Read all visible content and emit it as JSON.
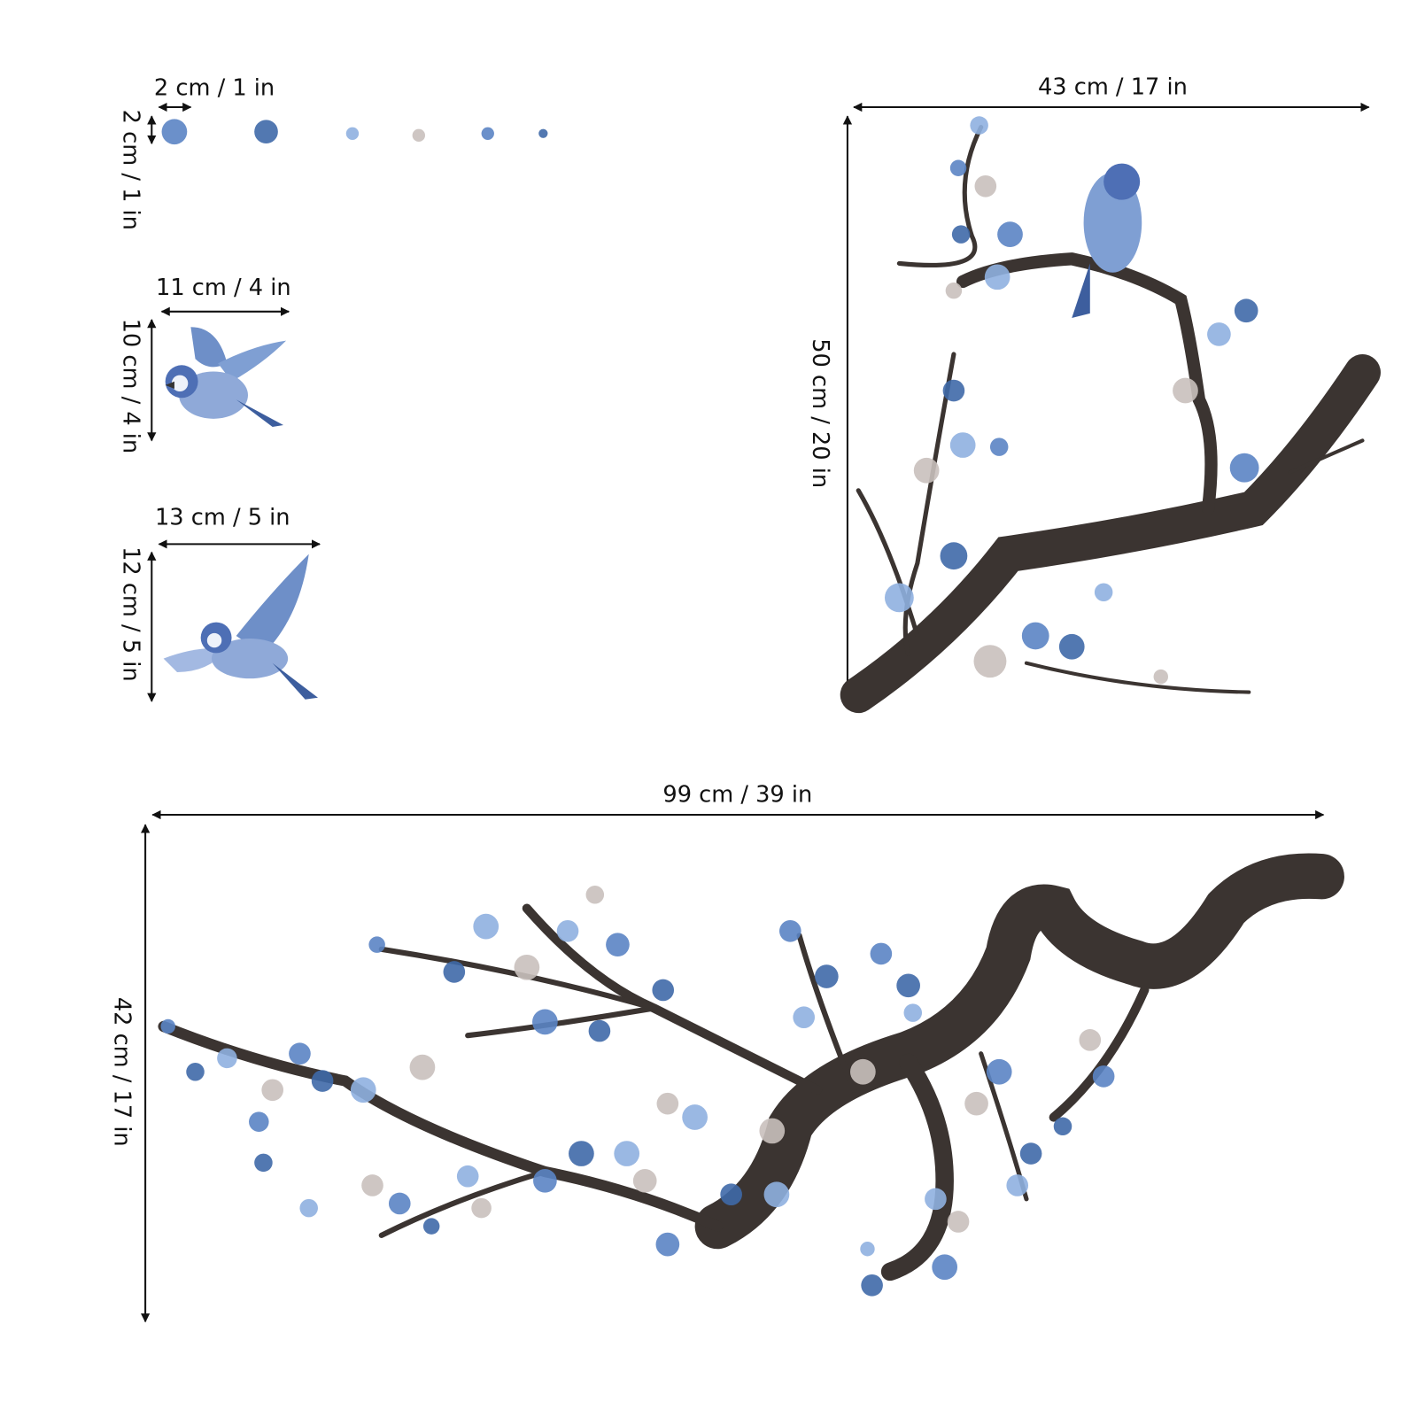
{
  "items": [
    {
      "width_label": "2 cm / 1 in",
      "height_label": "2 cm / 1 in"
    },
    {
      "width_label": "11 cm / 4 in",
      "height_label": "10 cm / 4 in"
    },
    {
      "width_label": "13 cm / 5 in",
      "height_label": "12 cm / 5 in"
    },
    {
      "width_label": "43 cm / 17 in",
      "height_label": "50 cm / 20 in"
    },
    {
      "width_label": "99 cm / 39 in",
      "height_label": "42 cm / 17 in"
    }
  ]
}
